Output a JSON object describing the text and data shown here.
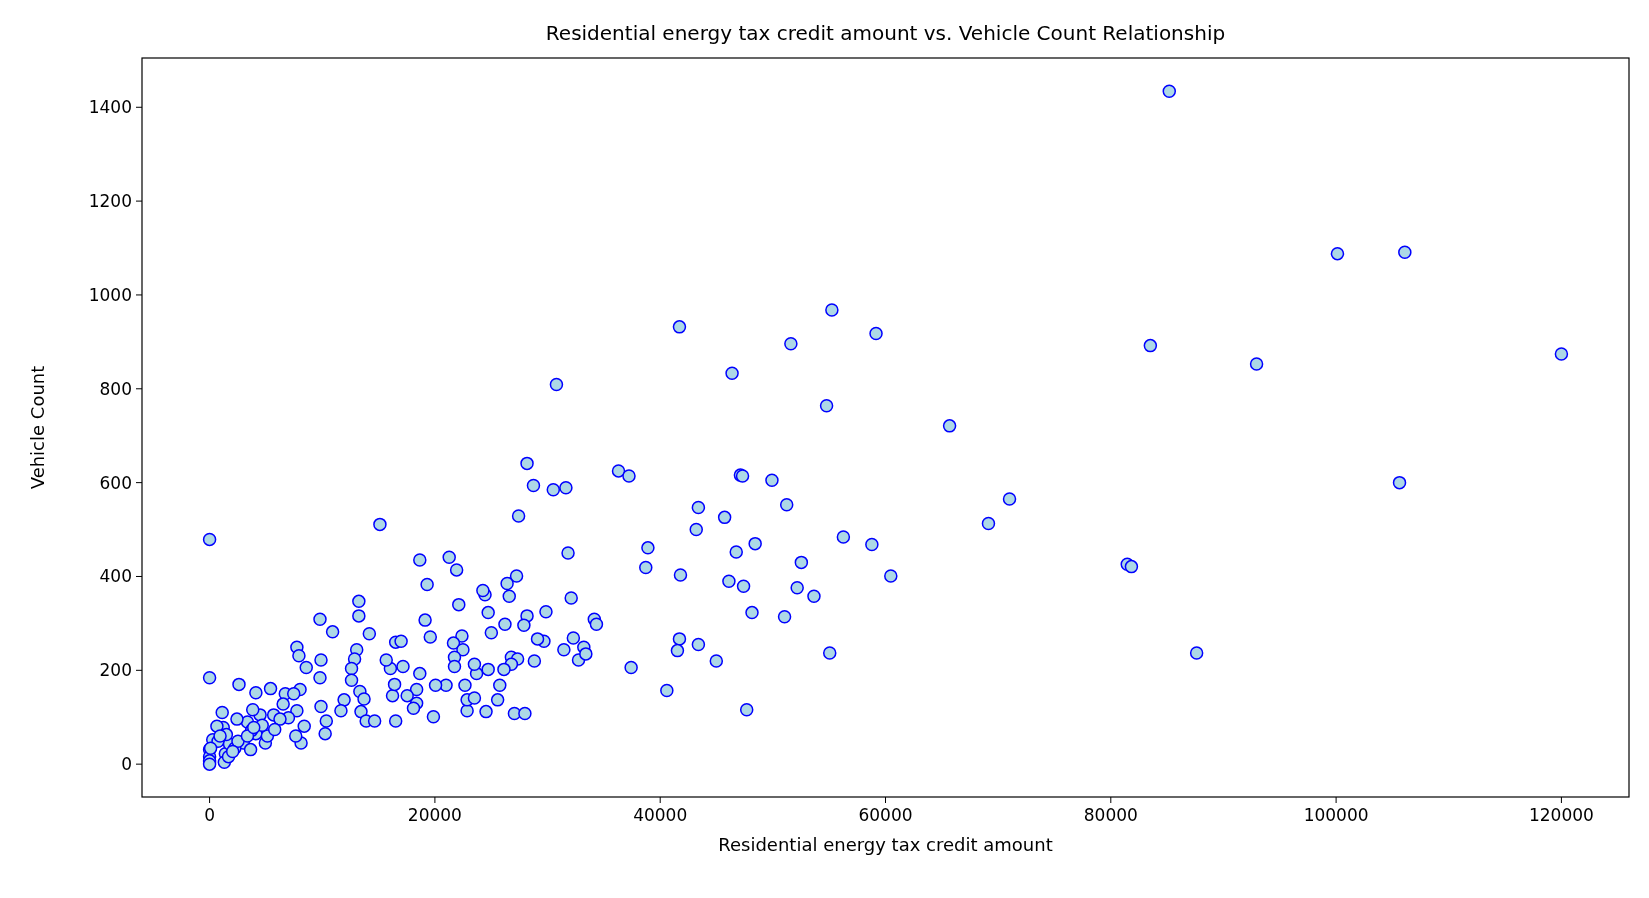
{
  "chart_data": {
    "type": "scatter",
    "title": "Residential energy tax credit amount vs. Vehicle Count Relationship",
    "xlabel": "Residential energy tax credit amount",
    "ylabel": "Vehicle Count",
    "xlim": [
      -6000,
      126000
    ],
    "ylim": [
      -70,
      1505
    ],
    "xticks": [
      0,
      20000,
      40000,
      60000,
      80000,
      100000,
      120000
    ],
    "yticks": [
      0,
      200,
      400,
      600,
      800,
      1000,
      1200,
      1400
    ],
    "grid": false,
    "marker": "circle",
    "series": [
      {
        "color": "#add8e6",
        "x": [
          85190,
          100120,
          106100,
          120000,
          92940,
          83510,
          105630,
          87620,
          81460,
          81830,
          69140,
          71010,
          65690,
          55240,
          41710,
          51600,
          59160,
          46380,
          54770,
          30790,
          36300,
          37230,
          28180,
          28750,
          31630,
          30510,
          47120,
          47310,
          49920,
          43390,
          45720,
          51230,
          43200,
          48430,
          46750,
          38910,
          38720,
          41800,
          46100,
          47400,
          48150,
          51040,
          52530,
          52160,
          53650,
          56260,
          58790,
          60470,
          55050,
          47680,
          40590,
          37420,
          41710,
          43390,
          41530,
          44980,
          31820,
          27430,
          32100,
          34150,
          34340,
          32290,
          29680,
          29110,
          33220,
          31450,
          32750,
          33400,
          28830,
          29860,
          28180,
          27900,
          27250,
          26410,
          26600,
          26220,
          24730,
          25010,
          24450,
          24260,
          21930,
          21270,
          18660,
          19310,
          15120,
          22120,
          19130,
          22400,
          21650,
          22490,
          19590,
          21740,
          21740,
          26790,
          27340,
          26790,
          24730,
          26130,
          23700,
          23510,
          22670,
          25760,
          20990,
          20060,
          18660,
          18380,
          18380,
          18100,
          17540,
          16240,
          16420,
          16050,
          15680,
          16520,
          17000,
          17170,
          14180,
          13250,
          13250,
          13060,
          12870,
          12600,
          12600,
          13340,
          13710,
          13440,
          13900,
          14650,
          11940,
          11660,
          16520,
          19870,
          22860,
          22860,
          23510,
          24540,
          25570,
          27060,
          27990,
          10920,
          9800,
          9890,
          9800,
          9890,
          10360,
          10260,
          7750,
          7930,
          8580,
          8030,
          7750,
          8120,
          8400,
          2610,
          5410,
          4110,
          6720,
          7470,
          0,
          0,
          6530,
          4480,
          5690,
          7000,
          3360,
          2430,
          1120,
          3830,
          6250,
          4110,
          4950,
          2990,
          3640,
          5130,
          1210,
          650,
          280,
          0,
          0,
          0,
          1400,
          750,
          1770,
          1490,
          2240,
          1310,
          0,
          90,
          930,
          2520,
          1680,
          3730,
          5780,
          7650,
          4670,
          3360,
          2050,
          3920
        ],
        "values": [
          1434,
          1088,
          1091,
          874,
          853,
          892,
          600,
          237,
          426,
          421,
          513,
          565,
          721,
          968,
          932,
          896,
          918,
          833,
          764,
          809,
          625,
          614,
          641,
          594,
          589,
          585,
          616,
          614,
          605,
          547,
          526,
          553,
          500,
          470,
          452,
          461,
          419,
          403,
          390,
          379,
          323,
          314,
          430,
          376,
          358,
          484,
          468,
          401,
          237,
          116,
          157,
          206,
          267,
          255,
          242,
          220,
          450,
          529,
          354,
          309,
          298,
          269,
          262,
          267,
          249,
          244,
          222,
          235,
          220,
          325,
          316,
          296,
          401,
          385,
          358,
          298,
          323,
          280,
          361,
          370,
          414,
          441,
          435,
          383,
          511,
          340,
          307,
          273,
          258,
          244,
          271,
          228,
          208,
          228,
          224,
          213,
          202,
          202,
          193,
          213,
          168,
          168,
          168,
          168,
          193,
          159,
          130,
          119,
          146,
          146,
          170,
          204,
          222,
          260,
          262,
          208,
          278,
          347,
          316,
          244,
          224,
          204,
          179,
          155,
          139,
          112,
          92,
          92,
          137,
          114,
          92,
          101,
          114,
          137,
          141,
          112,
          137,
          108,
          108,
          282,
          309,
          222,
          184,
          123,
          92,
          65,
          249,
          231,
          206,
          159,
          114,
          45,
          81,
          170,
          161,
          152,
          150,
          150,
          184,
          479,
          128,
          105,
          105,
          99,
          90,
          96,
          110,
          116,
          96,
          65,
          45,
          45,
          31,
          60,
          78,
          81,
          52,
          31,
          16,
          7,
          22,
          49,
          43,
          63,
          34,
          4,
          0,
          34,
          60,
          49,
          16,
          72,
          74,
          60,
          83,
          60,
          27,
          78
        ]
      }
    ]
  }
}
